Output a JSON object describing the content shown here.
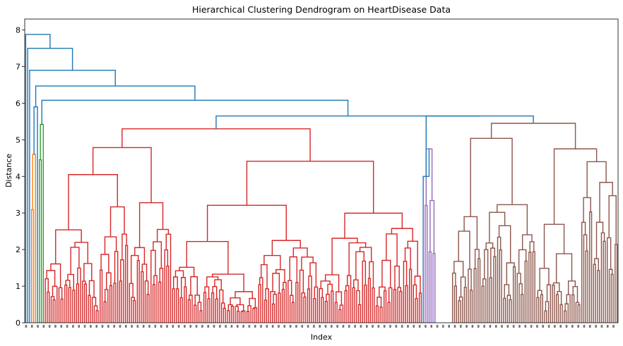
{
  "chart_data": {
    "type": "dendrogram",
    "title": "Hierarchical Clustering Dendrogram on HeartDisease Data",
    "xlabel": "Index",
    "ylabel": "Distance",
    "ylim": [
      0,
      8.3
    ],
    "y_ticks": [
      "0",
      "1",
      "2",
      "3",
      "4",
      "5",
      "6",
      "7",
      "8"
    ],
    "grid": false,
    "leaf_count": 303,
    "colors": {
      "above_threshold": "#1f77b4",
      "cluster_orange": "#ff7f0e",
      "cluster_green": "#2ca02c",
      "cluster_red": "#d62728",
      "cluster_purple": "#9467bd",
      "cluster_brown": "#8c564b"
    },
    "merge_heights_top": [
      7.88,
      7.5,
      6.9,
      6.47,
      6.08,
      5.65
    ],
    "clusters": [
      {
        "color": "cluster_orange",
        "leaf_count": 3,
        "merge_height": 4.6
      },
      {
        "color": "cluster_green",
        "leaf_count": 3,
        "merge_height": 5.42
      },
      {
        "color": "cluster_red",
        "leaf_count": 193,
        "merge_height": 5.3
      },
      {
        "color": "cluster_purple",
        "leaf_count": 6,
        "merge_height": 4.75
      },
      {
        "color": "cluster_brown",
        "leaf_count": 85,
        "merge_height": 5.45
      }
    ]
  }
}
